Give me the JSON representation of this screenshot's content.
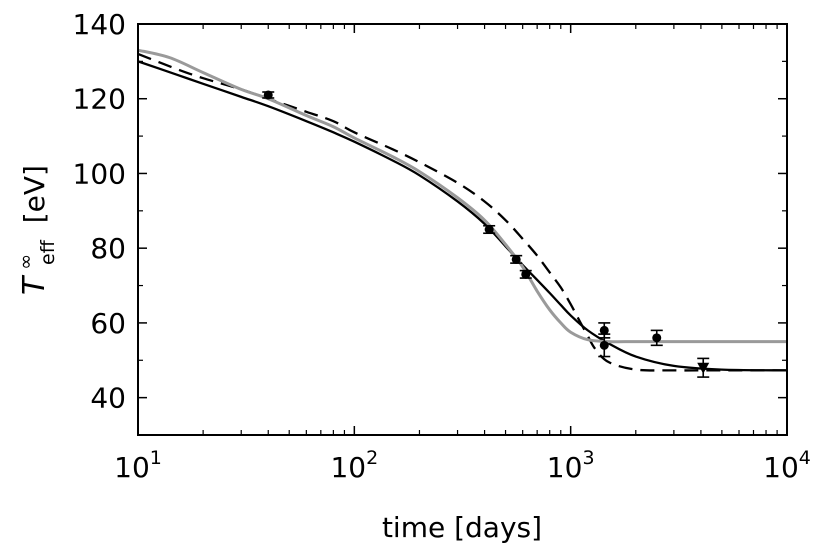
{
  "chart_data": {
    "type": "line",
    "xscale": "log",
    "xlim": [
      10,
      10000
    ],
    "ylim": [
      30,
      140
    ],
    "xlabel": "time [days]",
    "ylabel": {
      "symbol": "T",
      "superscript": "∞",
      "subscript": "eff",
      "unit": "[eV]"
    },
    "x_ticks": [
      {
        "value": 10,
        "base": "10",
        "exp": "1"
      },
      {
        "value": 100,
        "base": "10",
        "exp": "2"
      },
      {
        "value": 1000,
        "base": "10",
        "exp": "3"
      },
      {
        "value": 10000,
        "base": "10",
        "exp": "4"
      }
    ],
    "y_ticks": [
      "40",
      "60",
      "80",
      "100",
      "120",
      "140"
    ],
    "series": [
      {
        "style": "solid",
        "color": "#000000",
        "x": [
          10,
          15,
          20,
          30,
          40,
          60,
          80,
          100,
          150,
          200,
          300,
          400,
          500,
          600,
          700,
          800,
          900,
          1000,
          1200,
          1500,
          2000,
          3000,
          5000,
          10000
        ],
        "y": [
          130,
          126.5,
          124,
          120.5,
          118,
          114,
          111,
          108.5,
          103.5,
          99.5,
          92.5,
          86.5,
          80.5,
          75.5,
          71.5,
          68,
          64.8,
          62,
          58,
          54.5,
          51,
          48.5,
          47.5,
          47.3
        ]
      },
      {
        "style": "dashed",
        "color": "#000000",
        "x": [
          10,
          15,
          20,
          30,
          40,
          60,
          80,
          100,
          150,
          200,
          300,
          400,
          500,
          600,
          700,
          800,
          900,
          1000,
          1100,
          1200,
          1300,
          1500,
          2000,
          3000,
          5000,
          10000
        ],
        "y": [
          132,
          128,
          125.5,
          122.5,
          120,
          116.5,
          114,
          111,
          106.5,
          103,
          97.5,
          92.5,
          87.5,
          82.5,
          78,
          73.5,
          69.5,
          65,
          60.5,
          56.5,
          53,
          49.5,
          47.5,
          47.3,
          47.3,
          47.3
        ]
      },
      {
        "style": "solid",
        "color": "#9a9a9a",
        "x": [
          10,
          14,
          20,
          30,
          40,
          60,
          80,
          100,
          150,
          200,
          300,
          400,
          500,
          600,
          700,
          800,
          900,
          1000,
          1200,
          1500,
          2000,
          3000,
          10000
        ],
        "y": [
          133,
          131,
          127,
          122.5,
          120,
          115.5,
          112.5,
          109.5,
          104.5,
          100.5,
          93.5,
          87.5,
          81,
          75,
          68.5,
          63.5,
          60,
          57.5,
          55.5,
          55,
          55,
          55,
          55
        ]
      }
    ],
    "observations": [
      {
        "x": 40,
        "y": 121,
        "err": 0.8,
        "marker": "circle"
      },
      {
        "x": 420,
        "y": 85,
        "err": 1,
        "marker": "circle"
      },
      {
        "x": 560,
        "y": 77,
        "err": 1,
        "marker": "circle"
      },
      {
        "x": 620,
        "y": 73,
        "err": 1,
        "marker": "circle"
      },
      {
        "x": 1430,
        "y": 58,
        "err": 2,
        "marker": "circle"
      },
      {
        "x": 1430,
        "y": 54,
        "err": 3,
        "marker": "circle"
      },
      {
        "x": 2500,
        "y": 56,
        "err": 2,
        "marker": "circle"
      },
      {
        "x": 4100,
        "y": 48,
        "err": 2.5,
        "marker": "triangle-down"
      }
    ],
    "grid": false
  }
}
